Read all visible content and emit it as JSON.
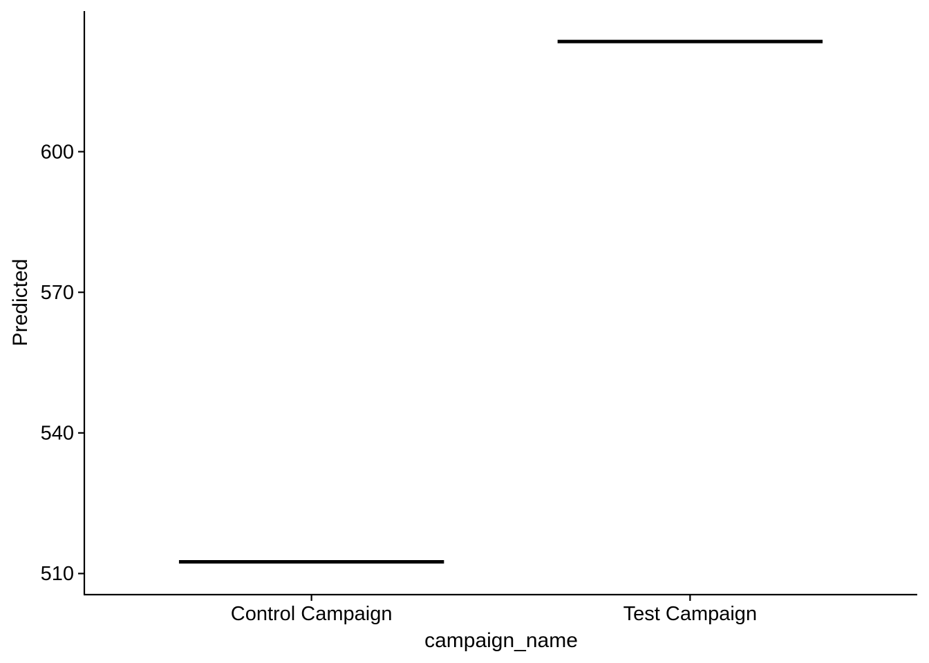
{
  "chart_data": {
    "type": "line",
    "title": "",
    "xlabel": "campaign_name",
    "ylabel": "Predicted",
    "categories": [
      "Control Campaign",
      "Test Campaign"
    ],
    "values": [
      512.5,
      623.5
    ],
    "ylim": [
      505.5,
      630
    ],
    "yticks": [
      510,
      540,
      570,
      600
    ],
    "ytick_labels": [
      "510",
      "540",
      "570",
      "600"
    ],
    "grid": false,
    "legend": "none",
    "colors": {
      "mark": "#000000",
      "axis": "#000000",
      "background": "#ffffff"
    }
  }
}
